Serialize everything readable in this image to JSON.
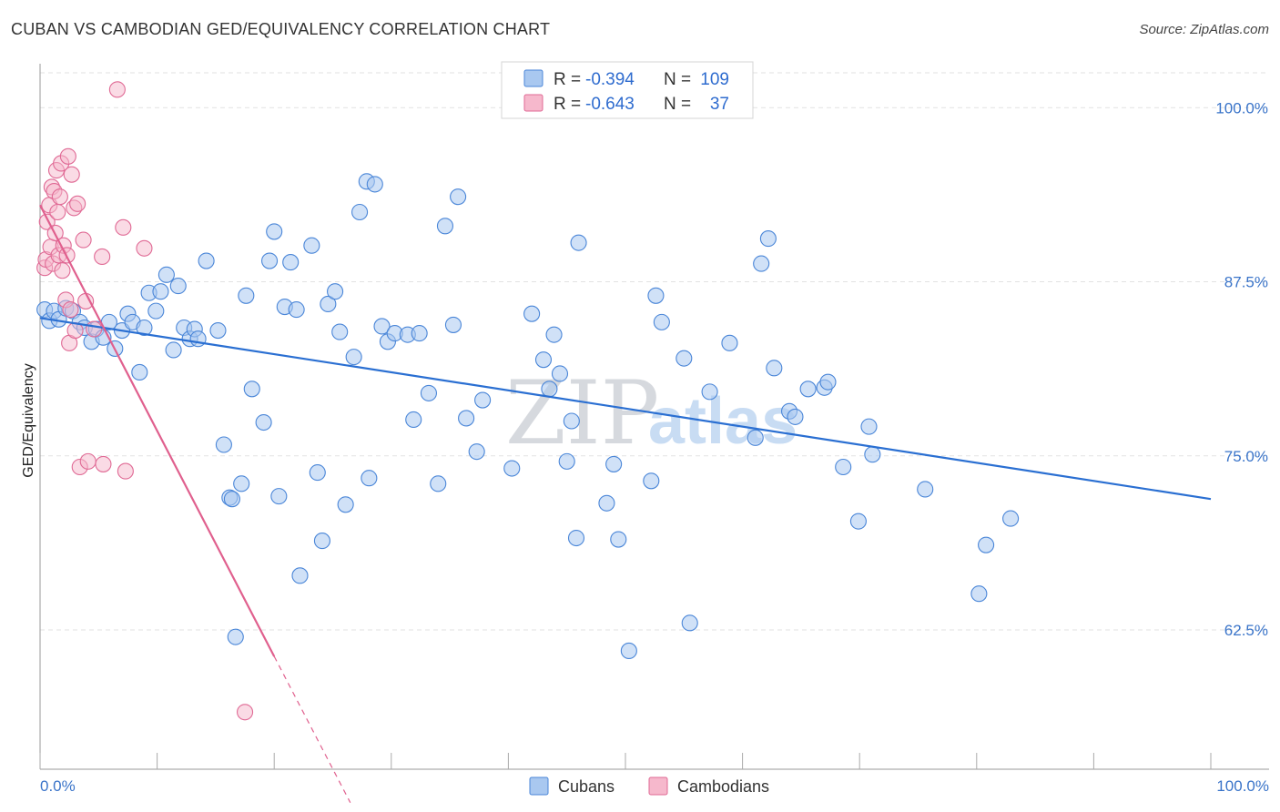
{
  "header": {
    "title": "CUBAN VS CAMBODIAN GED/EQUIVALENCY CORRELATION CHART",
    "source": "Source: ZipAtlas.com"
  },
  "legend": {
    "r_label": "R =",
    "n_label": "N =",
    "cubans": {
      "r": "-0.394",
      "n": "109"
    },
    "cambodians": {
      "r": "-0.643",
      "n": "37"
    }
  },
  "bottom_legend": {
    "cubans": "Cubans",
    "cambodians": "Cambodians"
  },
  "watermark": {
    "zip": "ZIP",
    "atlas": "atlas"
  },
  "chart_data": {
    "type": "scatter",
    "title": "CUBAN VS CAMBODIAN GED/EQUIVALENCY CORRELATION CHART",
    "xlabel": "",
    "ylabel": "GED/Equivalency",
    "xlim": [
      0,
      100
    ],
    "ylim": [
      52.5,
      102.5
    ],
    "x_tick_labels": [
      "0.0%",
      "100.0%"
    ],
    "y_ticks": [
      62.5,
      75.0,
      87.5,
      100.0
    ],
    "y_tick_labels": [
      "62.5%",
      "75.0%",
      "87.5%",
      "100.0%"
    ],
    "grid": true,
    "legend_position": "top-center",
    "colors": {
      "cubans": "#4a86d8",
      "cubans_fill": "#a9c8f0",
      "cambodians": "#e06a95",
      "cambodians_fill": "#f6b8cc",
      "axis_text": "#3a74c9"
    },
    "series": [
      {
        "name": "Cubans",
        "r": -0.394,
        "n": 109,
        "trend": {
          "x": [
            0,
            100
          ],
          "y": [
            84.9,
            71.9
          ]
        },
        "points": [
          [
            0.4,
            85.5
          ],
          [
            0.8,
            84.7
          ],
          [
            1.2,
            85.4
          ],
          [
            1.6,
            84.8
          ],
          [
            2.2,
            85.6
          ],
          [
            2.8,
            85.4
          ],
          [
            3.4,
            84.6
          ],
          [
            3.8,
            84.2
          ],
          [
            4.4,
            83.2
          ],
          [
            4.8,
            84.1
          ],
          [
            5.4,
            83.5
          ],
          [
            5.9,
            84.6
          ],
          [
            6.4,
            82.7
          ],
          [
            7.0,
            84.0
          ],
          [
            7.5,
            85.2
          ],
          [
            7.9,
            84.6
          ],
          [
            8.5,
            81.0
          ],
          [
            8.9,
            84.2
          ],
          [
            9.3,
            86.7
          ],
          [
            9.9,
            85.4
          ],
          [
            10.3,
            86.8
          ],
          [
            10.8,
            88.0
          ],
          [
            11.4,
            82.6
          ],
          [
            11.8,
            87.2
          ],
          [
            12.3,
            84.2
          ],
          [
            12.8,
            83.4
          ],
          [
            13.2,
            84.1
          ],
          [
            13.5,
            83.4
          ],
          [
            14.2,
            89.0
          ],
          [
            15.2,
            84.0
          ],
          [
            15.7,
            75.8
          ],
          [
            16.2,
            72.0
          ],
          [
            16.4,
            71.9
          ],
          [
            16.7,
            62.0
          ],
          [
            17.2,
            73.0
          ],
          [
            17.6,
            86.5
          ],
          [
            18.1,
            79.8
          ],
          [
            19.1,
            77.4
          ],
          [
            19.6,
            89.0
          ],
          [
            20.0,
            91.1
          ],
          [
            20.4,
            72.1
          ],
          [
            20.9,
            85.7
          ],
          [
            21.4,
            88.9
          ],
          [
            21.9,
            85.5
          ],
          [
            22.2,
            66.4
          ],
          [
            23.2,
            90.1
          ],
          [
            23.7,
            73.8
          ],
          [
            24.1,
            68.9
          ],
          [
            24.6,
            85.9
          ],
          [
            25.2,
            86.8
          ],
          [
            25.6,
            83.9
          ],
          [
            26.1,
            71.5
          ],
          [
            26.8,
            82.1
          ],
          [
            27.3,
            92.5
          ],
          [
            27.9,
            94.7
          ],
          [
            28.1,
            73.4
          ],
          [
            28.6,
            94.5
          ],
          [
            29.2,
            84.3
          ],
          [
            29.7,
            83.2
          ],
          [
            30.3,
            83.8
          ],
          [
            31.4,
            83.7
          ],
          [
            31.9,
            77.6
          ],
          [
            32.4,
            83.8
          ],
          [
            33.2,
            79.5
          ],
          [
            34.0,
            73.0
          ],
          [
            34.6,
            91.5
          ],
          [
            35.3,
            84.4
          ],
          [
            35.7,
            93.6
          ],
          [
            36.4,
            77.7
          ],
          [
            37.3,
            75.3
          ],
          [
            37.8,
            79.0
          ],
          [
            40.3,
            74.1
          ],
          [
            42.0,
            85.2
          ],
          [
            43.0,
            81.9
          ],
          [
            43.5,
            79.8
          ],
          [
            43.9,
            83.7
          ],
          [
            44.4,
            80.9
          ],
          [
            45.0,
            74.6
          ],
          [
            45.4,
            77.5
          ],
          [
            45.8,
            69.1
          ],
          [
            46.0,
            90.3
          ],
          [
            48.4,
            71.6
          ],
          [
            49.0,
            74.4
          ],
          [
            49.4,
            69.0
          ],
          [
            50.3,
            61.0
          ],
          [
            52.2,
            73.2
          ],
          [
            52.6,
            86.5
          ],
          [
            53.1,
            84.6
          ],
          [
            55.0,
            82.0
          ],
          [
            55.5,
            63.0
          ],
          [
            57.2,
            79.6
          ],
          [
            58.9,
            83.1
          ],
          [
            61.1,
            76.3
          ],
          [
            61.6,
            88.8
          ],
          [
            62.2,
            90.6
          ],
          [
            62.7,
            81.3
          ],
          [
            64.0,
            78.2
          ],
          [
            64.5,
            77.8
          ],
          [
            65.6,
            79.8
          ],
          [
            67.0,
            79.9
          ],
          [
            67.3,
            80.3
          ],
          [
            68.6,
            74.2
          ],
          [
            69.9,
            70.3
          ],
          [
            70.8,
            77.1
          ],
          [
            71.1,
            75.1
          ],
          [
            75.6,
            72.6
          ],
          [
            80.2,
            65.1
          ],
          [
            80.8,
            68.6
          ],
          [
            82.9,
            70.5
          ]
        ]
      },
      {
        "name": "Cambodians",
        "r": -0.643,
        "n": 37,
        "trend": {
          "x": [
            0,
            20
          ],
          "y": [
            93.0,
            60.6
          ]
        },
        "trend_dashed": {
          "x": [
            20,
            26.5
          ],
          "y": [
            60.6,
            50.1
          ]
        },
        "points": [
          [
            0.4,
            88.5
          ],
          [
            0.5,
            89.1
          ],
          [
            0.6,
            91.8
          ],
          [
            0.8,
            93.0
          ],
          [
            0.9,
            90.0
          ],
          [
            1.0,
            94.3
          ],
          [
            1.1,
            88.8
          ],
          [
            1.2,
            94.0
          ],
          [
            1.3,
            91.0
          ],
          [
            1.4,
            95.5
          ],
          [
            1.5,
            92.5
          ],
          [
            1.6,
            89.4
          ],
          [
            1.7,
            93.6
          ],
          [
            1.8,
            96.0
          ],
          [
            1.9,
            88.3
          ],
          [
            2.0,
            90.1
          ],
          [
            2.2,
            86.2
          ],
          [
            2.3,
            89.4
          ],
          [
            2.4,
            96.5
          ],
          [
            2.5,
            83.1
          ],
          [
            2.6,
            85.5
          ],
          [
            2.7,
            95.2
          ],
          [
            2.9,
            92.8
          ],
          [
            3.0,
            84.0
          ],
          [
            3.2,
            93.1
          ],
          [
            3.4,
            74.2
          ],
          [
            3.7,
            90.5
          ],
          [
            3.9,
            86.1
          ],
          [
            4.1,
            74.6
          ],
          [
            4.6,
            84.1
          ],
          [
            5.4,
            74.4
          ],
          [
            5.3,
            89.3
          ],
          [
            6.6,
            101.3
          ],
          [
            7.1,
            91.4
          ],
          [
            7.3,
            73.9
          ],
          [
            8.9,
            89.9
          ],
          [
            17.5,
            56.6
          ]
        ]
      }
    ]
  }
}
